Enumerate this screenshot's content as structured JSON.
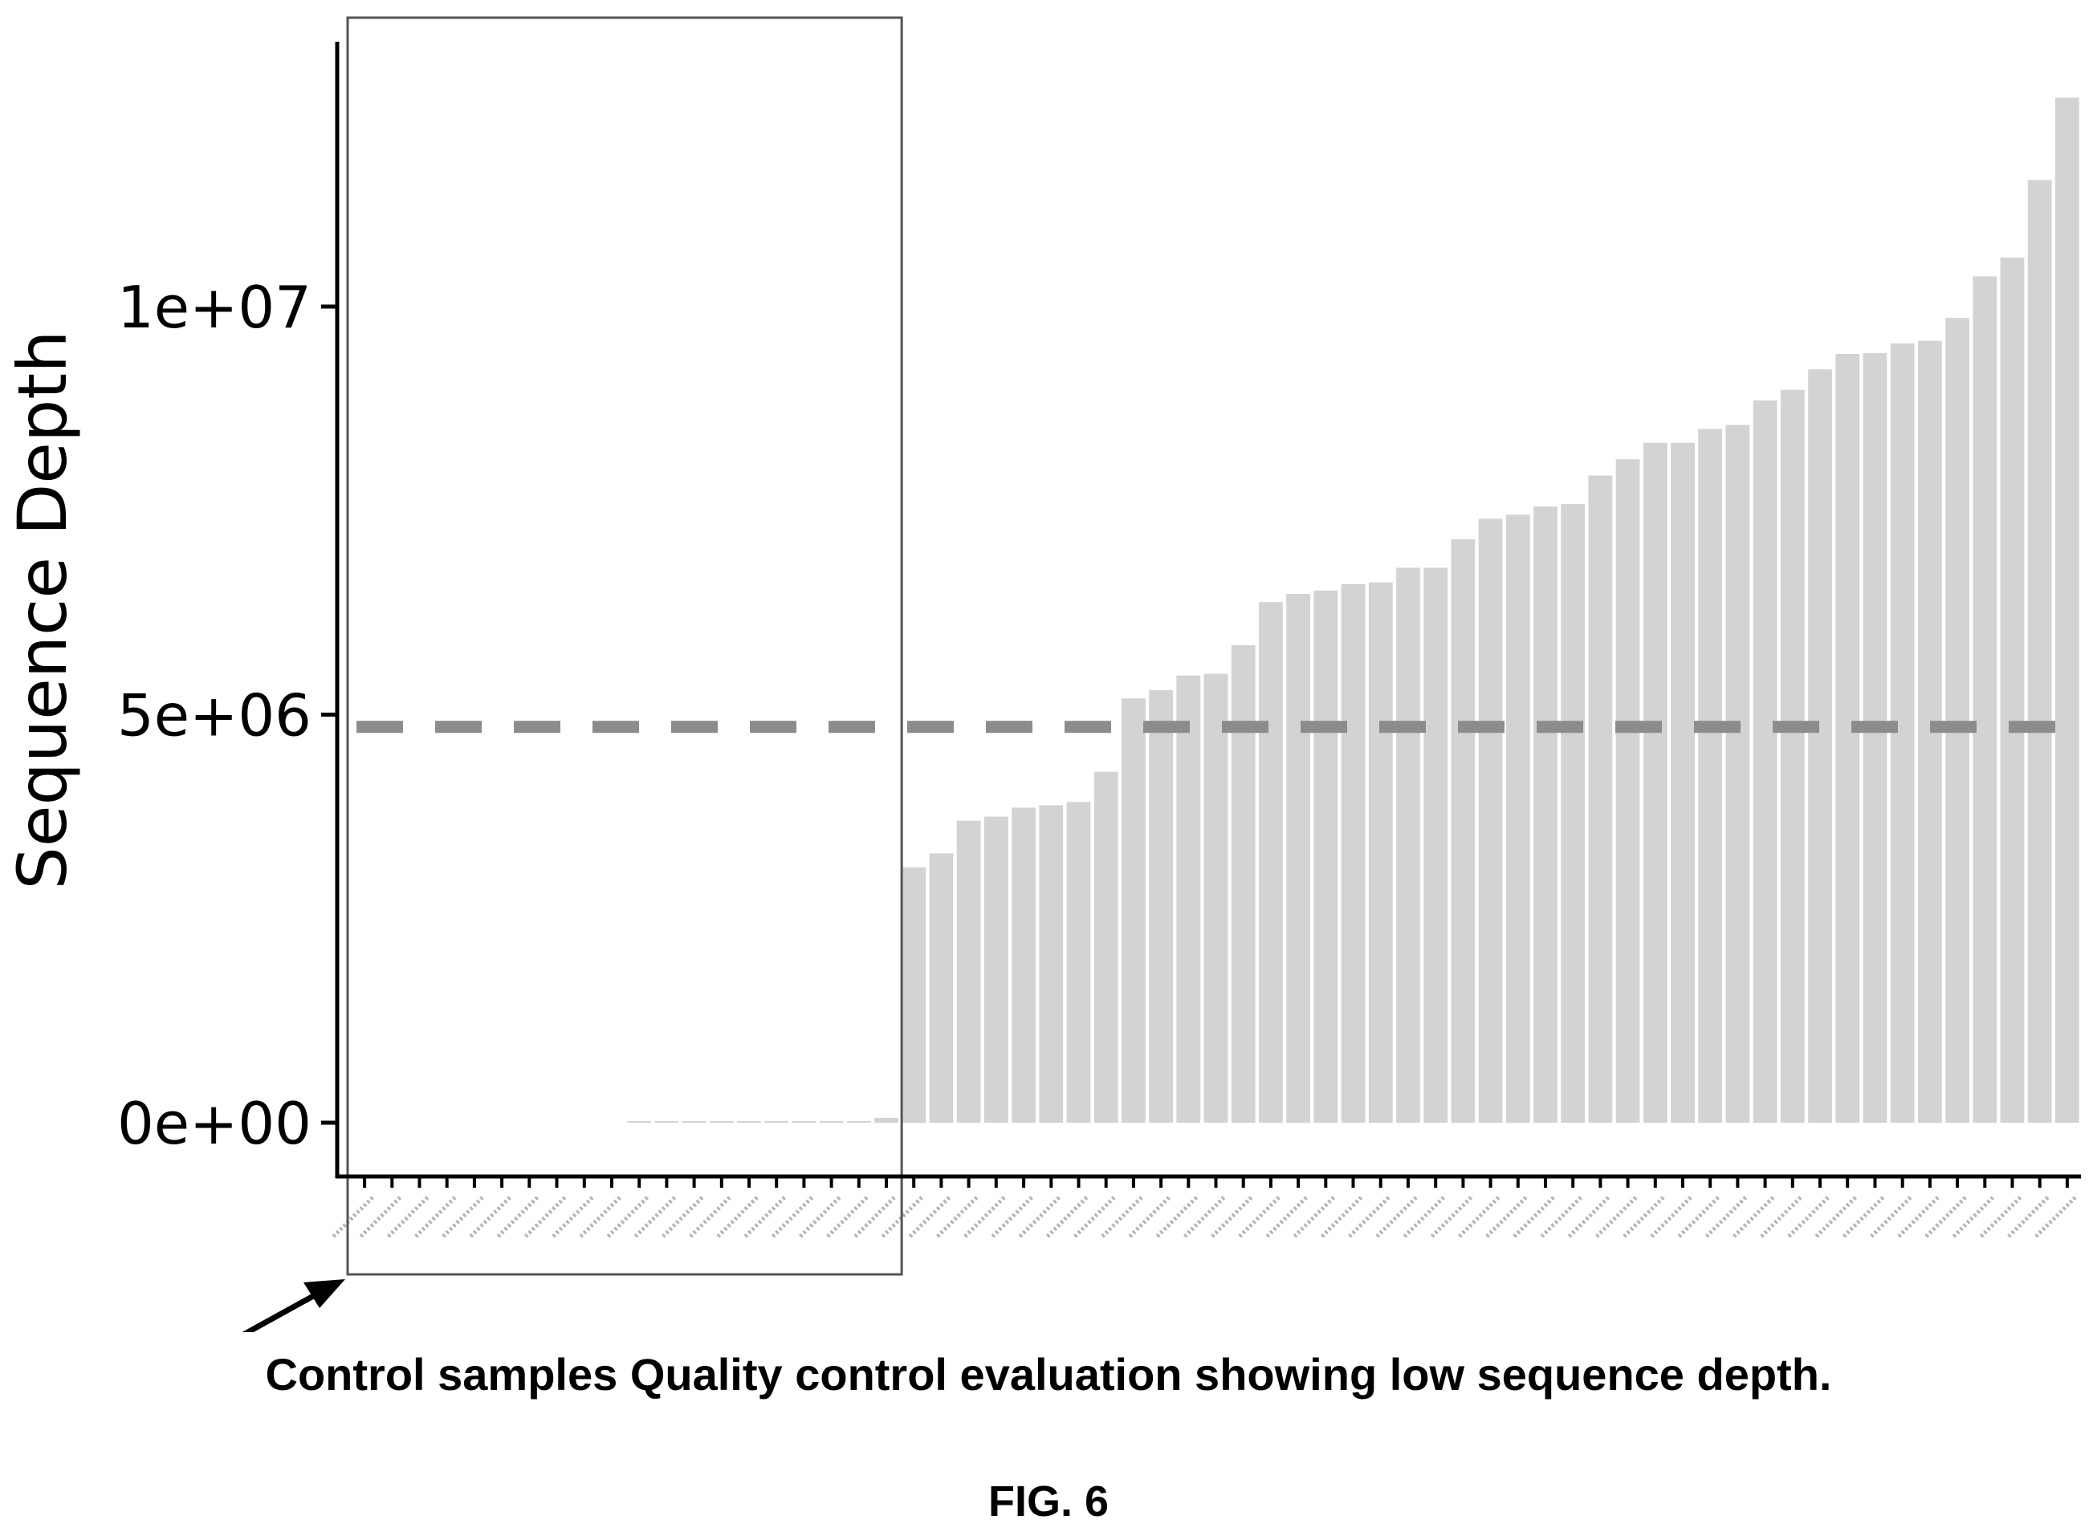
{
  "figure": {
    "label": "FIG. 6",
    "annotation": "Control samples Quality control evaluation showing low sequence depth."
  },
  "colors": {
    "bar": "#d3d3d3",
    "threshold": "#8c8c8c",
    "axis": "#000000",
    "box": "#555555"
  },
  "chart_data": {
    "type": "bar",
    "ylabel": "Sequence Depth",
    "xlabel": "",
    "title": "",
    "ylim": [
      -600000,
      13300000
    ],
    "yticks": [
      {
        "value": 0,
        "label": "0e+00"
      },
      {
        "value": 5000000,
        "label": "5e+06"
      },
      {
        "value": 10000000,
        "label": "1e+07"
      }
    ],
    "threshold": {
      "value": 4850000,
      "style": "dashed"
    },
    "grid": false,
    "legend": "none",
    "highlight_box": {
      "from_index": 0,
      "to_index": 19
    },
    "x_tick_labels_legible": false,
    "values": [
      0,
      0,
      0,
      0,
      0,
      0,
      0,
      0,
      0,
      0,
      10000,
      10000,
      10000,
      10000,
      10000,
      10000,
      10000,
      10000,
      10000,
      60000,
      3130000,
      3300000,
      3700000,
      3750000,
      3860000,
      3890000,
      3930000,
      4300000,
      5200000,
      5300000,
      5480000,
      5500000,
      5850000,
      6380000,
      6480000,
      6520000,
      6600000,
      6620000,
      6800000,
      6800000,
      7150000,
      7400000,
      7450000,
      7550000,
      7580000,
      7930000,
      8130000,
      8330000,
      8330000,
      8500000,
      8550000,
      8850000,
      8980000,
      9230000,
      9420000,
      9430000,
      9550000,
      9580000,
      9860000,
      10370000,
      10600000,
      11550000,
      12560000
    ]
  }
}
